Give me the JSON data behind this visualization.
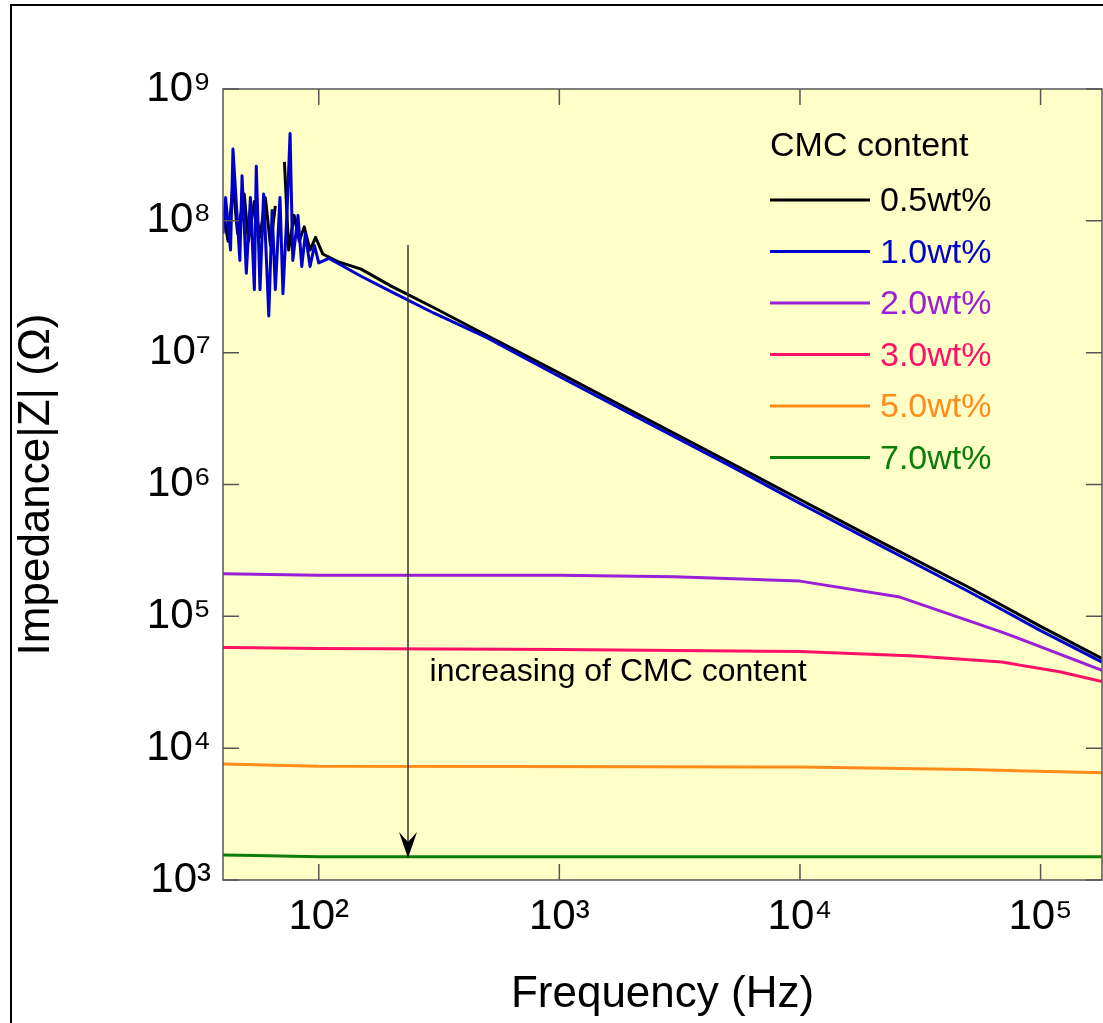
{
  "chart_data": {
    "type": "line",
    "xlabel": "Frequency (Hz)",
    "ylabel": "Impedance|Z| (Ω)",
    "legend_title": "CMC content",
    "legend": "top right",
    "log": "xy",
    "grid": false,
    "marker": "none",
    "line_style": "solid",
    "xlim": [
      40,
      180000
    ],
    "xticks": [
      {
        "value": 100,
        "label": "10²"
      },
      {
        "value": 1000,
        "label": "10³"
      },
      {
        "value": 10000,
        "label": "10⁴"
      },
      {
        "value": 100000,
        "label": "10⁵"
      }
    ],
    "ylim": [
      1000,
      1000000000
    ],
    "yticks": [
      {
        "value": 1000,
        "label": "10³"
      },
      {
        "value": 10000,
        "label": "10⁴"
      },
      {
        "value": 100000,
        "label": "10⁵"
      },
      {
        "value": 1000000,
        "label": "10⁶"
      },
      {
        "value": 10000000,
        "label": "10⁷"
      },
      {
        "value": 100000000,
        "label": "10⁸"
      },
      {
        "value": 1000000000,
        "label": "10⁹"
      }
    ],
    "annotations": [
      "increasing of CMC content"
    ],
    "series": [
      {
        "name": "0.5wt%",
        "color": "#000000",
        "x": [
          40,
          42,
          44,
          46,
          49,
          51,
          54,
          57,
          60,
          63,
          66,
          69,
          72,
          75,
          79,
          83,
          87,
          92,
          97,
          104,
          120,
          150,
          200,
          300,
          500,
          1000,
          2000,
          5000,
          10000,
          20000,
          50000,
          100000,
          180000
        ],
        "values": [
          120000000,
          70000000,
          190000000,
          80000000,
          160000000,
          70000000,
          140000000,
          75000000,
          150000000,
          65000000,
          130000000,
          null,
          280000000,
          60000000,
          110000000,
          70000000,
          90000000,
          60000000,
          75000000,
          56000000,
          49000000,
          43000000,
          32000000,
          22000000,
          13500000,
          7000000,
          3600000,
          1500000,
          770000,
          395000,
          167000,
          84000,
          48000
        ]
      },
      {
        "name": "1.0wt%",
        "color": "#0000cc",
        "x": [
          40,
          41,
          43,
          44,
          47,
          48,
          50,
          52,
          54,
          55,
          57,
          59,
          62,
          64,
          66,
          69,
          71,
          74,
          76,
          78,
          82,
          85,
          88,
          92,
          96,
          100,
          110,
          150,
          200,
          300,
          500,
          1000,
          2000,
          5000,
          10000,
          20000,
          50000,
          100000,
          180000
        ],
        "values": [
          80000000,
          150000000,
          60000000,
          350000000,
          50000000,
          220000000,
          40000000,
          150000000,
          30000000,
          260000000,
          30000000,
          160000000,
          19000000,
          120000000,
          30000000,
          150000000,
          28000000,
          130000000,
          460000000,
          50000000,
          110000000,
          45000000,
          80000000,
          45000000,
          65000000,
          48000000,
          52000000,
          38000000,
          29000000,
          20000000,
          13000000,
          6600000,
          3400000,
          1420000,
          720000,
          370000,
          155000,
          78000,
          45000
        ]
      },
      {
        "name": "2.0wt%",
        "color": "#9b1fd6",
        "x": [
          40,
          100,
          1000,
          3000,
          10000,
          26000,
          69000,
          180000
        ],
        "values": [
          210000,
          205000,
          205000,
          200000,
          185000,
          140000,
          76000,
          39000
        ]
      },
      {
        "name": "3.0wt%",
        "color": "#ff1166",
        "x": [
          40,
          100,
          1000,
          10000,
          30000,
          69000,
          120000,
          180000
        ],
        "values": [
          58000,
          57000,
          56000,
          54000,
          50000,
          45000,
          38000,
          32000
        ]
      },
      {
        "name": "5.0wt%",
        "color": "#ff8c1a",
        "x": [
          40,
          100,
          10000,
          50000,
          180000
        ],
        "values": [
          7600,
          7300,
          7200,
          6900,
          6500
        ]
      },
      {
        "name": "7.0wt%",
        "color": "#0a7d0a",
        "x": [
          40,
          100,
          180000
        ],
        "values": [
          1550,
          1500,
          1500
        ]
      }
    ]
  }
}
